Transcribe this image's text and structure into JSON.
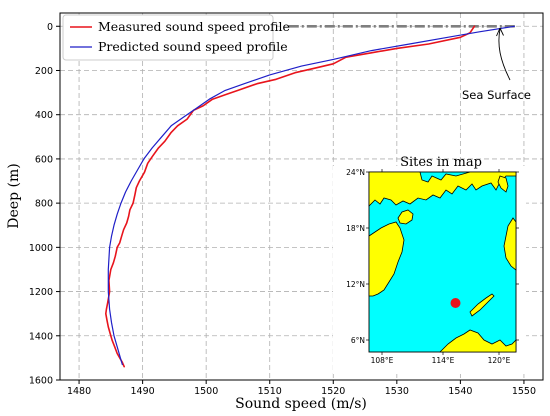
{
  "chart_data": {
    "type": "line",
    "xlabel": "Sound speed (m/s)",
    "ylabel": "Deep (m)",
    "xlim": [
      1477,
      1553
    ],
    "ylim": [
      1600,
      -60
    ],
    "y_inverted": true,
    "xticks": [
      1480,
      1490,
      1500,
      1510,
      1520,
      1530,
      1540,
      1550
    ],
    "yticks": [
      0,
      200,
      400,
      600,
      800,
      1000,
      1200,
      1400,
      1600
    ],
    "grid": true,
    "legend_position": "top-left",
    "series": [
      {
        "name": "Measured sound speed profile",
        "color": "#e8141c",
        "x": [
          1542.2,
          1541.5,
          1540,
          1535,
          1530,
          1526,
          1522,
          1520,
          1517,
          1514,
          1511,
          1508,
          1505,
          1503,
          1501,
          1499.5,
          1498,
          1497,
          1495.5,
          1494.5,
          1493.5,
          1492.5,
          1491.5,
          1490.8,
          1490.3,
          1489.5,
          1489,
          1488.8,
          1488.5,
          1488,
          1487.8,
          1487.5,
          1487,
          1486.7,
          1486.4,
          1486,
          1485.7,
          1485.4,
          1485,
          1484.7,
          1484.8,
          1484.5,
          1484.3,
          1484.2,
          1484.4,
          1484.6,
          1484.9,
          1485.2,
          1485.6,
          1486,
          1486.4,
          1486.8,
          1487.1
        ],
        "y": [
          0,
          30,
          50,
          80,
          100,
          120,
          140,
          170,
          190,
          210,
          240,
          260,
          290,
          310,
          330,
          360,
          380,
          420,
          450,
          480,
          520,
          550,
          590,
          620,
          660,
          700,
          730,
          760,
          800,
          830,
          860,
          890,
          920,
          950,
          980,
          1000,
          1040,
          1070,
          1100,
          1150,
          1200,
          1250,
          1280,
          1300,
          1330,
          1360,
          1390,
          1420,
          1450,
          1480,
          1500,
          1520,
          1540
        ]
      },
      {
        "name": "Predicted sound speed profile",
        "color": "#1f1fc8",
        "x": [
          1548.5,
          1543,
          1538,
          1532,
          1526,
          1520,
          1515,
          1510,
          1506,
          1503,
          1500.5,
          1498.5,
          1496.5,
          1494.5,
          1493,
          1491.5,
          1490.2,
          1489.2,
          1488.2,
          1487.3,
          1486.6,
          1486,
          1485.5,
          1485.1,
          1484.8,
          1484.6,
          1484.6,
          1484.8,
          1485.1,
          1485.5,
          1486,
          1486.5,
          1486.8
        ],
        "y": [
          0,
          25,
          50,
          80,
          110,
          150,
          180,
          220,
          260,
          290,
          330,
          370,
          410,
          450,
          500,
          550,
          600,
          650,
          700,
          750,
          800,
          850,
          900,
          950,
          1000,
          1100,
          1200,
          1280,
          1340,
          1400,
          1450,
          1500,
          1530
        ]
      },
      {
        "name": "",
        "color": "#7f7f7f",
        "style": "dashdot",
        "x": [
          1513,
          1549
        ],
        "y": [
          0,
          0
        ]
      }
    ],
    "annotations": [
      {
        "text": "Sea Surface",
        "x": 1545,
        "y": 290,
        "arrow_to": [
          1548.5,
          0
        ]
      }
    ],
    "inset": {
      "title": "Sites in map",
      "lon_ticks": [
        "108°E",
        "114°E",
        "120°E"
      ],
      "lat_ticks": [
        "24°N",
        "18°N",
        "12°N",
        "6°N"
      ],
      "site": {
        "lon": 114.7,
        "lat": 10.0,
        "color": "#e8141c"
      },
      "sea_color": "#00ffff",
      "land_color": "#ffff00"
    }
  }
}
